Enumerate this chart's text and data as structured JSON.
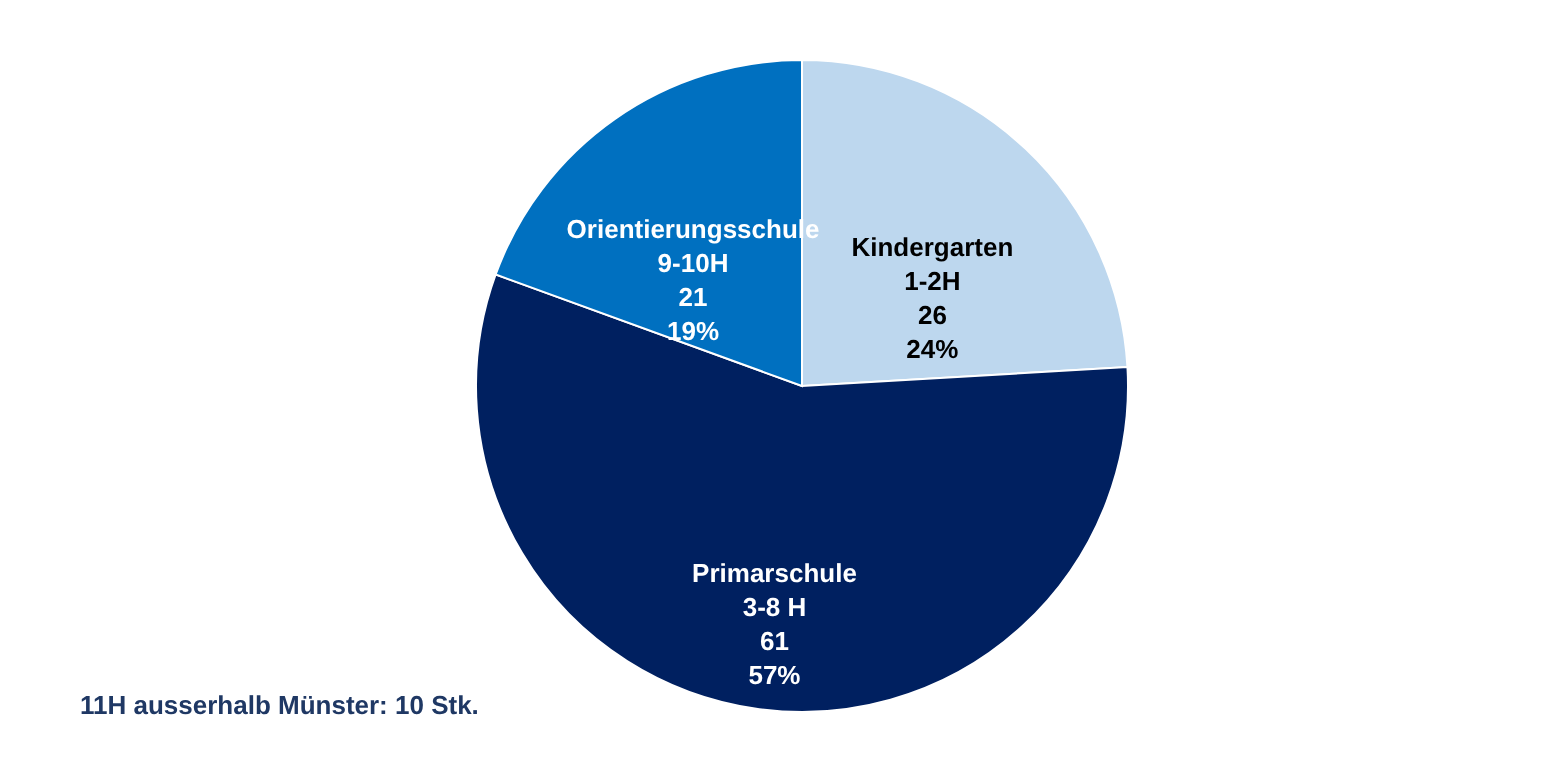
{
  "chart_data": {
    "type": "pie",
    "categories": [
      "Kindergarten\n1-2H",
      "Primarschule\n3-8 H",
      "Orientierungsschule\n9-10H"
    ],
    "values": [
      26,
      61,
      21
    ],
    "value_labels": [
      "26\n24%",
      "61\n57%",
      "21\n19%"
    ],
    "colors": [
      "#bdd7ee",
      "#002060",
      "#0070c0"
    ],
    "annotations": [
      "11H ausserhalb Münster: 10 Stk."
    ]
  }
}
